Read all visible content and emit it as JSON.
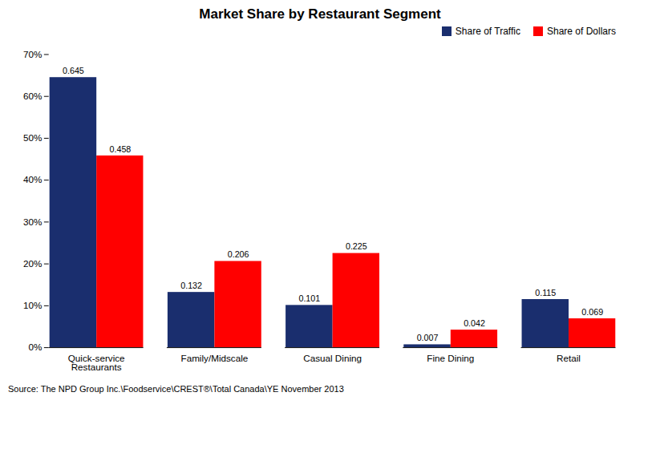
{
  "chart_data": {
    "type": "bar",
    "title": "Market Share by Restaurant Segment",
    "categories": [
      "Quick-service\nRestaurants",
      "Family/Midscale",
      "Casual Dining",
      "Fine Dining",
      "Retail"
    ],
    "series": [
      {
        "name": "Share of Traffic",
        "color": "#1a2e6e",
        "values": [
          0.645,
          0.132,
          0.101,
          0.007,
          0.115
        ]
      },
      {
        "name": "Share of Dollars",
        "color": "#ff0000",
        "values": [
          0.458,
          0.206,
          0.225,
          0.042,
          0.069
        ]
      }
    ],
    "ylim": [
      0,
      0.7
    ],
    "yticks": [
      {
        "value": 0.0,
        "label": "0%"
      },
      {
        "value": 0.1,
        "label": "10%"
      },
      {
        "value": 0.2,
        "label": "20%"
      },
      {
        "value": 0.3,
        "label": "30%"
      },
      {
        "value": 0.4,
        "label": "40%"
      },
      {
        "value": 0.5,
        "label": "50%"
      },
      {
        "value": 0.6,
        "label": "60%"
      },
      {
        "value": 0.7,
        "label": "70%"
      }
    ],
    "grid": false,
    "legend": "upper right",
    "data_labels": true,
    "source": "Source: The NPD Group Inc.\\Foodservice\\CREST®\\Total Canada\\YE November 2013"
  }
}
